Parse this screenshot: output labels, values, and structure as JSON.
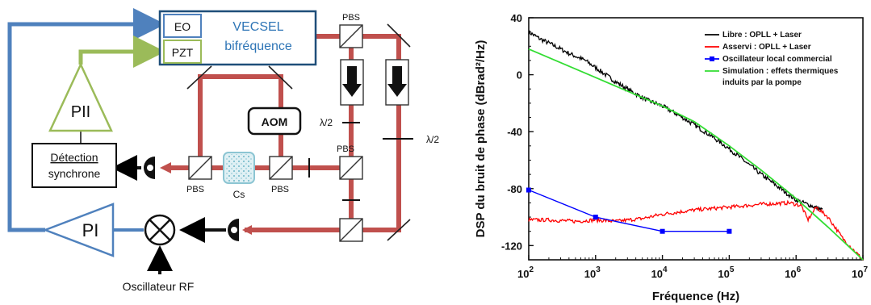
{
  "diagram": {
    "blocks": {
      "eo": "EO",
      "pzt": "PZT",
      "vecsel_line1": "VECSEL",
      "vecsel_line2": "bifréquence",
      "pii": "PII",
      "detection_line1": "Détection",
      "detection_line2": "synchrone",
      "aom": "AOM",
      "pi": "PI",
      "oscillator": "Oscillateur RF"
    },
    "components": {
      "pbs": "PBS",
      "halfwave": "λ/2",
      "cs": "Cs"
    },
    "colors": {
      "beam": "#c0504d",
      "feedback_blue": "#4f81bd",
      "feedback_green": "#9bbb59",
      "black": "#000000"
    }
  },
  "chart_data": {
    "type": "line",
    "xlabel": "Fréquence (Hz)",
    "ylabel": "DSP du bruit de phase (dBrad²/Hz)",
    "xscale": "log",
    "xlim": [
      100,
      10000000
    ],
    "ylim": [
      -130,
      40
    ],
    "x_ticks": [
      {
        "value": 100,
        "base": "10",
        "exp": "2"
      },
      {
        "value": 1000,
        "base": "10",
        "exp": "3"
      },
      {
        "value": 10000,
        "base": "10",
        "exp": "4"
      },
      {
        "value": 100000,
        "base": "10",
        "exp": "5"
      },
      {
        "value": 1000000,
        "base": "10",
        "exp": "6"
      },
      {
        "value": 10000000,
        "base": "10",
        "exp": "7"
      }
    ],
    "y_ticks": [
      40,
      0,
      -40,
      -80,
      -120
    ],
    "legend_position": "top-right",
    "series": [
      {
        "name": "Libre : OPLL + Laser",
        "color": "#000000",
        "style": "noisy",
        "x": [
          100,
          150,
          250,
          400,
          700,
          1000,
          2000,
          3500,
          6000,
          10000,
          20000,
          50000,
          100000,
          300000,
          1000000,
          2500000
        ],
        "y": [
          30,
          25,
          20,
          15,
          10,
          5,
          -5,
          -12,
          -18,
          -22,
          -30,
          -42,
          -52,
          -70,
          -88,
          -95
        ]
      },
      {
        "name": "Asservi : OPLL + Laser",
        "color": "#ff0000",
        "style": "noisy",
        "x": [
          100,
          200,
          500,
          1000,
          2000,
          5000,
          10000,
          30000,
          100000,
          300000,
          800000,
          1200000,
          1500000,
          2000000,
          3000000,
          5000000,
          10000000
        ],
        "y": [
          -102,
          -102,
          -103,
          -102,
          -103,
          -101,
          -98,
          -95,
          -93,
          -91,
          -90,
          -92,
          -102,
          -93,
          -100,
          -115,
          -130
        ]
      },
      {
        "name": "Oscillateur local commercial",
        "color": "#0000ff",
        "style": "markers",
        "x": [
          100,
          1000,
          10000,
          100000
        ],
        "y": [
          -81,
          -100,
          -110,
          -110
        ]
      },
      {
        "name": "Simulation : effets thermiques induits par la pompe",
        "legend_lines": [
          "Simulation : effets thermiques",
          "induits par la pompe"
        ],
        "color": "#33dd33",
        "style": "smooth",
        "x": [
          100,
          1000,
          10000,
          30000,
          100000,
          300000,
          1000000,
          3000000,
          10000000
        ],
        "y": [
          18,
          -2,
          -22,
          -33,
          -50,
          -67,
          -87,
          -107,
          -130
        ]
      }
    ]
  }
}
